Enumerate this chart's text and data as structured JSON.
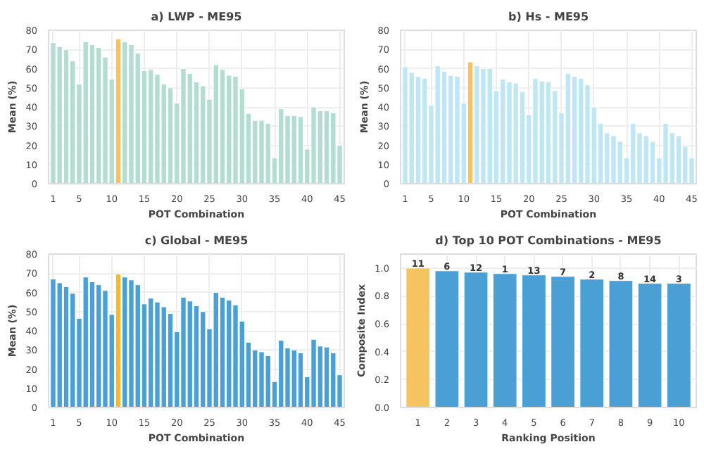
{
  "chart_data": [
    {
      "type": "bar",
      "title": "a) LWP - ME95",
      "xlabel": "POT Combination",
      "ylabel": "Mean (%)",
      "x": [
        1,
        2,
        3,
        4,
        5,
        6,
        7,
        8,
        9,
        10,
        11,
        12,
        13,
        14,
        15,
        16,
        17,
        18,
        19,
        20,
        21,
        22,
        23,
        24,
        25,
        26,
        27,
        28,
        29,
        30,
        31,
        32,
        33,
        34,
        35,
        36,
        37,
        38,
        39,
        40,
        41,
        42,
        43,
        44,
        45
      ],
      "values": [
        73.5,
        71.5,
        70,
        64,
        52,
        74,
        72.5,
        71,
        66,
        54.5,
        75.5,
        74,
        72.5,
        68,
        59,
        59.5,
        57,
        52,
        50,
        42,
        60,
        57.5,
        53,
        51,
        44,
        62,
        59.5,
        56.5,
        56,
        49.5,
        36.5,
        33,
        33,
        31.5,
        13.5,
        39,
        35.5,
        35.5,
        35,
        18,
        40,
        38,
        38,
        37,
        20
      ],
      "colors": [
        "#b3dcd2",
        "#b3dcd2",
        "#b3dcd2",
        "#b3dcd2",
        "#b3dcd2",
        "#b3dcd2",
        "#b3dcd2",
        "#b3dcd2",
        "#b3dcd2",
        "#b3dcd2",
        "#f5c35f",
        "#b3dcd2",
        "#b3dcd2",
        "#b3dcd2",
        "#b3dcd2",
        "#b3dcd2",
        "#b3dcd2",
        "#b3dcd2",
        "#b3dcd2",
        "#b3dcd2",
        "#b3dcd2",
        "#b3dcd2",
        "#b3dcd2",
        "#b3dcd2",
        "#b3dcd2",
        "#b3dcd2",
        "#b3dcd2",
        "#b3dcd2",
        "#b3dcd2",
        "#b3dcd2",
        "#b3dcd2",
        "#b3dcd2",
        "#b3dcd2",
        "#b3dcd2",
        "#b3dcd2",
        "#b3dcd2",
        "#b3dcd2",
        "#b3dcd2",
        "#b3dcd2",
        "#b3dcd2",
        "#b3dcd2",
        "#b3dcd2",
        "#b3dcd2",
        "#b3dcd2",
        "#b3dcd2"
      ],
      "xlim": [
        0.3,
        45.7
      ],
      "xticks": [
        1,
        5,
        10,
        15,
        20,
        25,
        30,
        35,
        40,
        45
      ],
      "ylim": [
        0,
        80
      ],
      "yticks": [
        0,
        10,
        20,
        30,
        40,
        50,
        60,
        70,
        80
      ],
      "grid": true
    },
    {
      "type": "bar",
      "title": "b) Hs - ME95",
      "xlabel": "POT Combination",
      "ylabel": "Mean (%)",
      "x": [
        1,
        2,
        3,
        4,
        5,
        6,
        7,
        8,
        9,
        10,
        11,
        12,
        13,
        14,
        15,
        16,
        17,
        18,
        19,
        20,
        21,
        22,
        23,
        24,
        25,
        26,
        27,
        28,
        29,
        30,
        31,
        32,
        33,
        34,
        35,
        36,
        37,
        38,
        39,
        40,
        41,
        42,
        43,
        44,
        45
      ],
      "values": [
        61,
        58,
        56,
        55,
        41,
        61.5,
        58.5,
        56.5,
        56,
        42,
        63.5,
        61.5,
        60,
        60,
        48.5,
        54.5,
        53,
        52.5,
        48,
        36,
        55,
        53.5,
        53,
        48.5,
        37,
        57.5,
        56,
        55,
        51.5,
        40,
        31.5,
        26.5,
        25,
        22,
        13.5,
        31.5,
        26.5,
        25,
        22,
        13.5,
        31.5,
        26.5,
        25,
        19.5,
        13.5
      ],
      "colors": [
        "#bfe6f5",
        "#bfe6f5",
        "#bfe6f5",
        "#bfe6f5",
        "#bfe6f5",
        "#bfe6f5",
        "#bfe6f5",
        "#bfe6f5",
        "#bfe6f5",
        "#bfe6f5",
        "#f5c35f",
        "#bfe6f5",
        "#bfe6f5",
        "#bfe6f5",
        "#bfe6f5",
        "#bfe6f5",
        "#bfe6f5",
        "#bfe6f5",
        "#bfe6f5",
        "#bfe6f5",
        "#bfe6f5",
        "#bfe6f5",
        "#bfe6f5",
        "#bfe6f5",
        "#bfe6f5",
        "#bfe6f5",
        "#bfe6f5",
        "#bfe6f5",
        "#bfe6f5",
        "#bfe6f5",
        "#bfe6f5",
        "#bfe6f5",
        "#bfe6f5",
        "#bfe6f5",
        "#bfe6f5",
        "#bfe6f5",
        "#bfe6f5",
        "#bfe6f5",
        "#bfe6f5",
        "#bfe6f5",
        "#bfe6f5",
        "#bfe6f5",
        "#bfe6f5",
        "#bfe6f5",
        "#bfe6f5"
      ],
      "xlim": [
        0.3,
        45.7
      ],
      "xticks": [
        1,
        5,
        10,
        15,
        20,
        25,
        30,
        35,
        40,
        45
      ],
      "ylim": [
        0,
        80
      ],
      "yticks": [
        0,
        10,
        20,
        30,
        40,
        50,
        60,
        70,
        80
      ],
      "grid": true
    },
    {
      "type": "bar",
      "title": "c) Global - ME95",
      "xlabel": "POT Combination",
      "ylabel": "Mean (%)",
      "x": [
        1,
        2,
        3,
        4,
        5,
        6,
        7,
        8,
        9,
        10,
        11,
        12,
        13,
        14,
        15,
        16,
        17,
        18,
        19,
        20,
        21,
        22,
        23,
        24,
        25,
        26,
        27,
        28,
        29,
        30,
        31,
        32,
        33,
        34,
        35,
        36,
        37,
        38,
        39,
        40,
        41,
        42,
        43,
        44,
        45
      ],
      "values": [
        67,
        65,
        63,
        59.5,
        46.5,
        68,
        65.5,
        64,
        61,
        48.5,
        69.5,
        68,
        66.5,
        64,
        54,
        57,
        55,
        52.5,
        49,
        39.5,
        57.5,
        55.5,
        53,
        50,
        41,
        60,
        57.5,
        56,
        53.5,
        45,
        34,
        30,
        29,
        27,
        13.5,
        35,
        31,
        30,
        28.5,
        16,
        35.5,
        32,
        31.5,
        28.5,
        17
      ],
      "colors": [
        "#4a9fd5",
        "#4a9fd5",
        "#4a9fd5",
        "#4a9fd5",
        "#4a9fd5",
        "#4a9fd5",
        "#4a9fd5",
        "#4a9fd5",
        "#4a9fd5",
        "#4a9fd5",
        "#f5b82e",
        "#4a9fd5",
        "#4a9fd5",
        "#4a9fd5",
        "#4a9fd5",
        "#4a9fd5",
        "#4a9fd5",
        "#4a9fd5",
        "#4a9fd5",
        "#4a9fd5",
        "#4a9fd5",
        "#4a9fd5",
        "#4a9fd5",
        "#4a9fd5",
        "#4a9fd5",
        "#4a9fd5",
        "#4a9fd5",
        "#4a9fd5",
        "#4a9fd5",
        "#4a9fd5",
        "#4a9fd5",
        "#4a9fd5",
        "#4a9fd5",
        "#4a9fd5",
        "#4a9fd5",
        "#4a9fd5",
        "#4a9fd5",
        "#4a9fd5",
        "#4a9fd5",
        "#4a9fd5",
        "#4a9fd5",
        "#4a9fd5",
        "#4a9fd5",
        "#4a9fd5",
        "#4a9fd5"
      ],
      "xlim": [
        0.3,
        45.7
      ],
      "xticks": [
        1,
        5,
        10,
        15,
        20,
        25,
        30,
        35,
        40,
        45
      ],
      "ylim": [
        0,
        80
      ],
      "yticks": [
        0,
        10,
        20,
        30,
        40,
        50,
        60,
        70,
        80
      ],
      "grid": true
    },
    {
      "type": "bar",
      "title": "d) Top 10 POT Combinations - ME95",
      "xlabel": "Ranking Position",
      "ylabel": "Composite Index",
      "categories": [
        "1",
        "2",
        "3",
        "4",
        "5",
        "6",
        "7",
        "8",
        "9",
        "10"
      ],
      "values": [
        1.0,
        0.98,
        0.97,
        0.96,
        0.95,
        0.94,
        0.92,
        0.91,
        0.89,
        0.89
      ],
      "annotations": [
        {
          "text": "11",
          "x": "1",
          "y": 1.0
        },
        {
          "text": "6",
          "x": "2",
          "y": 0.98
        },
        {
          "text": "12",
          "x": "3",
          "y": 0.97
        },
        {
          "text": "1",
          "x": "4",
          "y": 0.96
        },
        {
          "text": "13",
          "x": "5",
          "y": 0.95
        },
        {
          "text": "7",
          "x": "6",
          "y": 0.94
        },
        {
          "text": "2",
          "x": "7",
          "y": 0.92
        },
        {
          "text": "8",
          "x": "8",
          "y": 0.91
        },
        {
          "text": "14",
          "x": "9",
          "y": 0.89
        },
        {
          "text": "3",
          "x": "10",
          "y": 0.89
        }
      ],
      "colors": [
        "#f5c35f",
        "#4a9fd5",
        "#4a9fd5",
        "#4a9fd5",
        "#4a9fd5",
        "#4a9fd5",
        "#4a9fd5",
        "#4a9fd5",
        "#4a9fd5",
        "#4a9fd5"
      ],
      "ylim": [
        0,
        1.1
      ],
      "yticks": [
        {
          "value": 0,
          "label": "0.0"
        },
        {
          "value": 0.2,
          "label": "0.2"
        },
        {
          "value": 0.4,
          "label": "0.4"
        },
        {
          "value": 0.6,
          "label": "0.6"
        },
        {
          "value": 0.8,
          "label": "0.8"
        },
        {
          "value": 1.0,
          "label": "1.0"
        }
      ],
      "grid": true
    }
  ]
}
